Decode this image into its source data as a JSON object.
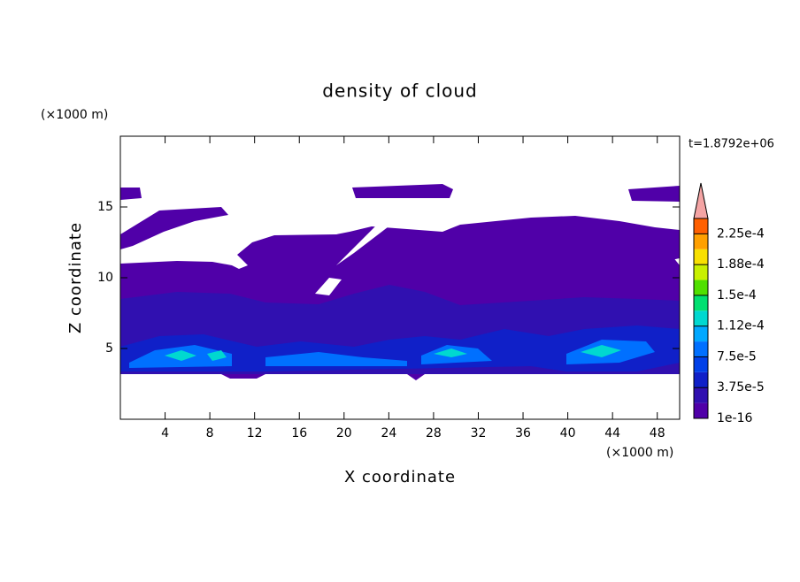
{
  "chart_data": {
    "type": "contour",
    "title": "density of cloud",
    "xlabel": "X coordinate",
    "ylabel": "Z coordinate",
    "xunit": "(×1000 m)",
    "yunit": "(×1000 m)",
    "time_label": "t=1.8792e+06",
    "xlim": [
      0,
      50
    ],
    "ylim": [
      0,
      20
    ],
    "xticks": [
      4,
      8,
      12,
      16,
      20,
      24,
      28,
      32,
      36,
      40,
      44,
      48
    ],
    "yticks": [
      5,
      10,
      15
    ],
    "colorbar": {
      "lim": [
        0,
        0.00024375
      ],
      "ticks": [
        {
          "value": 1e-16,
          "label": "1e-16"
        },
        {
          "value": 3.75e-05,
          "label": "3.75e-5"
        },
        {
          "value": 7.5e-05,
          "label": "7.5e-5"
        },
        {
          "value": 0.0001125,
          "label": "1.12e-4"
        },
        {
          "value": 0.00015,
          "label": "1.5e-4"
        },
        {
          "value": 0.0001875,
          "label": "1.88e-4"
        },
        {
          "value": 0.000225,
          "label": "2.25e-4"
        }
      ],
      "colors": [
        "#5000a8",
        "#3010b0",
        "#1020c8",
        "#0040e8",
        "#0070ff",
        "#00a8ff",
        "#00d8d0",
        "#00e070",
        "#50e000",
        "#c8f000",
        "#f8e000",
        "#ffa000",
        "#ff6000"
      ],
      "extend_color": "#f4a4a4"
    }
  }
}
